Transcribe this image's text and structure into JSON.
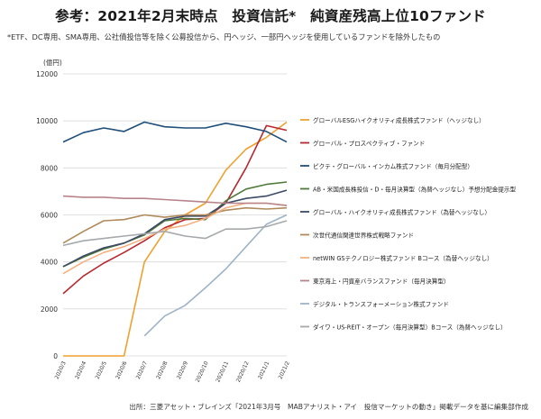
{
  "page": {
    "title": "参考：2021年2月末時点　投資信託*　純資産残高上位10ファンド",
    "note": "*ETF、DC専用、SMA専用、公社債投信等を除く公募投信から、円ヘッジ、一部円ヘッジを使用しているファンドを除外したもの",
    "source": "出所：三菱アセット・ブレインズ「2021年3月号　MABアナリスト・アイ　投信マーケットの動き」掲載データを基に編集部作成"
  },
  "chart_data": {
    "type": "line",
    "title": "",
    "xlabel": "",
    "ylabel": "",
    "y_unit": "(億円)",
    "ylim": [
      0,
      12000
    ],
    "y_ticks": [
      0,
      2000,
      4000,
      6000,
      8000,
      10000,
      12000
    ],
    "grid": true,
    "legend_position": "right",
    "x": [
      "2020/3",
      "2020/4",
      "2020/5",
      "2020/6",
      "2020/7",
      "2020/8",
      "2020/9",
      "2020/10",
      "2020/11",
      "2020/12",
      "2021/1",
      "2021/2"
    ],
    "series": [
      {
        "name": "グローバルESGハイクオリティ成長株式ファンド（ヘッジなし）",
        "color": "#f0a02e",
        "values": [
          0,
          0,
          0,
          0,
          4000,
          5300,
          6000,
          6500,
          7900,
          8800,
          9300,
          9950
        ]
      },
      {
        "name": "グローバル・プロスペクティブ・ファンド",
        "color": "#b7282e",
        "values": [
          2650,
          3400,
          3950,
          4400,
          4900,
          5450,
          5800,
          5850,
          6500,
          8000,
          9800,
          9600
        ]
      },
      {
        "name": "ピクテ・グローバル・インカム株式ファンド（毎月分配型）",
        "color": "#1f4e79",
        "values": [
          9100,
          9500,
          9700,
          9550,
          9950,
          9750,
          9700,
          9700,
          9900,
          9750,
          9550,
          9100
        ]
      },
      {
        "name": "AB・米国成長株投信・D・毎月決算型（為替ヘッジなし）予想分配金提示型",
        "color": "#4f7a3a",
        "values": [
          3800,
          4200,
          4550,
          4800,
          5150,
          5750,
          5850,
          5800,
          6600,
          7100,
          7300,
          7400
        ]
      },
      {
        "name": "グローバル・ハイクオリティ成長株式ファンド（為替ヘッジなし）",
        "color": "#3d4a66",
        "values": [
          3800,
          4250,
          4600,
          4800,
          5200,
          5800,
          5950,
          5950,
          6500,
          6700,
          6800,
          7050
        ]
      },
      {
        "name": "次世代通信関連世界株式戦略ファンド",
        "color": "#b08a5a",
        "values": [
          4800,
          5300,
          5750,
          5800,
          6000,
          5900,
          6000,
          6000,
          6200,
          6300,
          6250,
          6300
        ]
      },
      {
        "name": "netWIN GSテクノロジー株式ファンド Bコース（為替ヘッジなし）",
        "color": "#f4b183",
        "values": [
          3500,
          4000,
          4400,
          4650,
          5000,
          5400,
          5550,
          5850,
          6300,
          6500,
          6500,
          6400
        ]
      },
      {
        "name": "東京海上・円資産バランスファンド（毎月決算型）",
        "color": "#b8848c",
        "values": [
          6800,
          6750,
          6750,
          6700,
          6700,
          6650,
          6600,
          6550,
          6500,
          6500,
          6500,
          6400
        ]
      },
      {
        "name": "デジタル・トランスフォーメーション株式ファンド",
        "color": "#9eb3c6",
        "values": [
          null,
          null,
          null,
          null,
          850,
          1700,
          2150,
          2900,
          3700,
          4650,
          5600,
          6000
        ]
      },
      {
        "name": "ダイワ・US-REIT・オープン（毎月決算型）Bコース（為替ヘッジなし）",
        "color": "#a5a9ab",
        "values": [
          4700,
          4900,
          5000,
          5100,
          5200,
          5300,
          5100,
          5000,
          5400,
          5400,
          5500,
          5750
        ]
      }
    ]
  }
}
